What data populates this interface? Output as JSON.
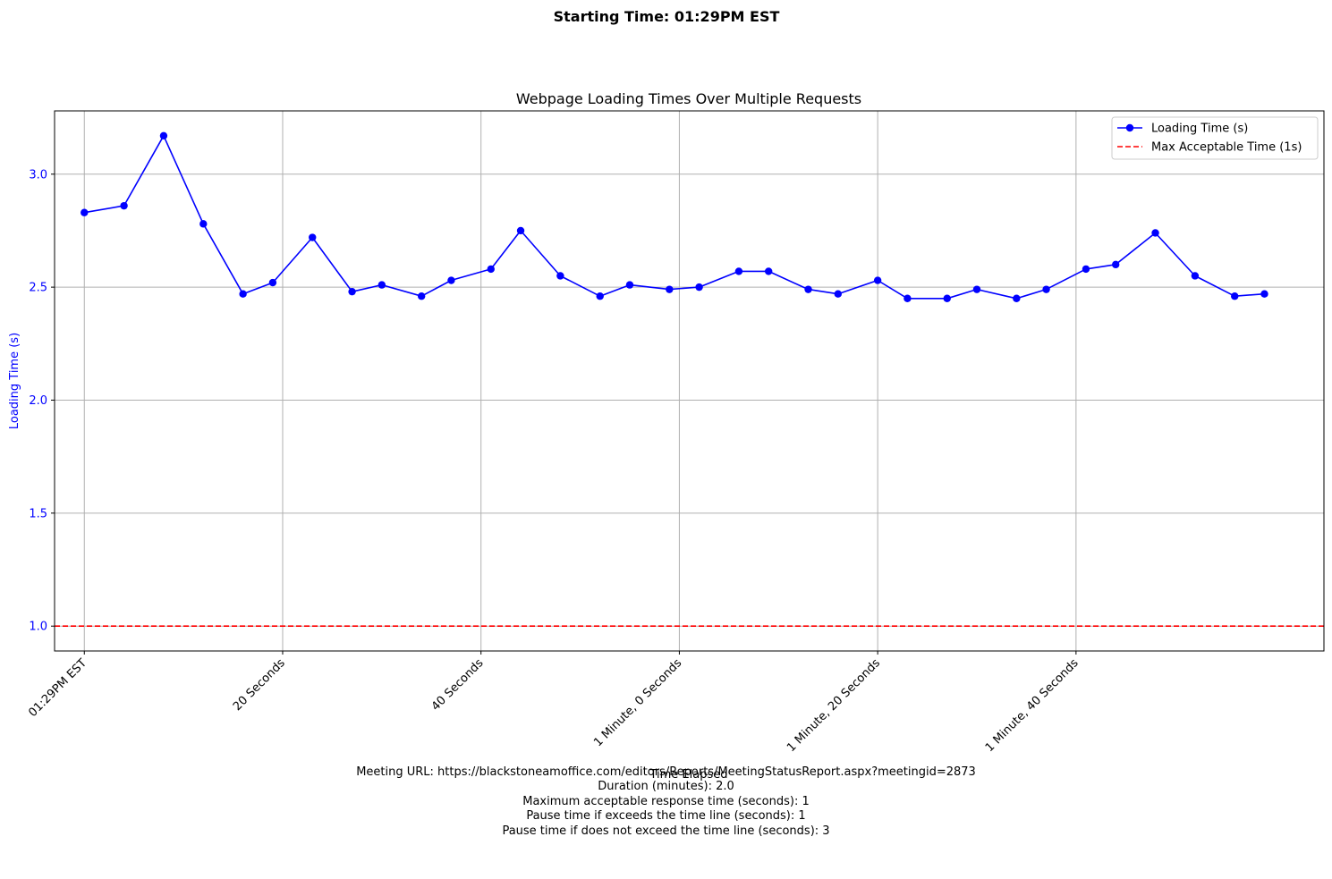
{
  "chart_data": {
    "type": "line",
    "suptitle": "Starting Time: 01:29PM EST",
    "title": "Webpage Loading Times Over Multiple Requests",
    "xlabel": "Time Elapsed",
    "ylabel": "Loading Time (s)",
    "x_unit": "seconds elapsed",
    "xlim": [
      -3,
      125
    ],
    "ylim": [
      0.89,
      3.28
    ],
    "yticks": [
      1.0,
      1.5,
      2.0,
      2.5,
      3.0
    ],
    "ytick_labels": [
      "1.0",
      "1.5",
      "2.0",
      "2.5",
      "3.0"
    ],
    "xticks": [
      0,
      20,
      40,
      60,
      80,
      100
    ],
    "xtick_labels": [
      "01:29PM EST",
      "20 Seconds",
      "40 Seconds",
      "1 Minute, 0 Seconds",
      "1 Minute, 20 Seconds",
      "1 Minute, 40 Seconds"
    ],
    "grid": true,
    "legend_position": "top-right",
    "colors": {
      "series": "#0000ff",
      "threshold": "#ff0000",
      "grid": "#b0b0b0",
      "ylabel": "#0000ff"
    },
    "series": [
      {
        "name": "Loading Time (s)",
        "style": "solid-line-circle-markers",
        "x": [
          0,
          4,
          8,
          12,
          16,
          19,
          23,
          27,
          30,
          34,
          37,
          41,
          44,
          48,
          52,
          55,
          59,
          62,
          66,
          69,
          73,
          76,
          80,
          83,
          87,
          90,
          94,
          97,
          101,
          104,
          108,
          112,
          116,
          119
        ],
        "y": [
          2.83,
          2.86,
          3.17,
          2.78,
          2.47,
          2.52,
          2.72,
          2.48,
          2.51,
          2.46,
          2.53,
          2.58,
          2.75,
          2.55,
          2.46,
          2.51,
          2.49,
          2.5,
          2.57,
          2.57,
          2.49,
          2.47,
          2.53,
          2.45,
          2.45,
          2.49,
          2.45,
          2.49,
          2.58,
          2.6,
          2.74,
          2.55,
          2.46,
          2.47
        ]
      }
    ],
    "reference_lines": [
      {
        "name": "Max Acceptable Time (1s)",
        "y": 1.0,
        "style": "dashed"
      }
    ]
  },
  "footer": {
    "lines": [
      "Meeting URL: https://blackstoneamoffice.com/editors/Reports/MeetingStatusReport.aspx?meetingid=2873",
      "Duration (minutes): 2.0",
      "Maximum acceptable response time (seconds): 1",
      "Pause time if exceeds the time line (seconds): 1",
      "Pause time if does not exceed the time line (seconds): 3"
    ]
  }
}
